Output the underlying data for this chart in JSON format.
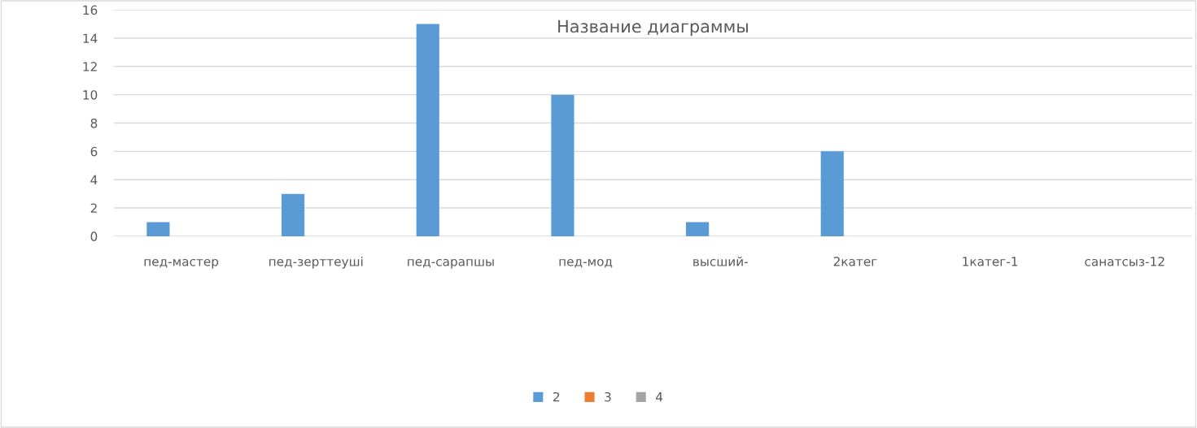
{
  "chart_data": {
    "type": "bar",
    "title": "Название диаграммы",
    "categories": [
      "пед-мастер",
      "пед-зерттеуші",
      "пед-сарапшы",
      "пед-мод",
      "высший-",
      "2катег",
      "1катег-1",
      "санатсыз-12"
    ],
    "series": [
      {
        "name": "2",
        "color": "#5b9bd5",
        "values": [
          1,
          3,
          15,
          10,
          1,
          6,
          null,
          null
        ]
      },
      {
        "name": "3",
        "color": "#ed7d31",
        "values": [
          null,
          null,
          null,
          null,
          null,
          null,
          null,
          null
        ]
      },
      {
        "name": "4",
        "color": "#a5a5a5",
        "values": [
          null,
          null,
          null,
          null,
          null,
          null,
          null,
          null
        ]
      }
    ],
    "ylim": [
      0,
      16
    ],
    "yticks": [
      0,
      2,
      4,
      6,
      8,
      10,
      12,
      14,
      16
    ],
    "grid": "y",
    "legend": "bottom"
  }
}
